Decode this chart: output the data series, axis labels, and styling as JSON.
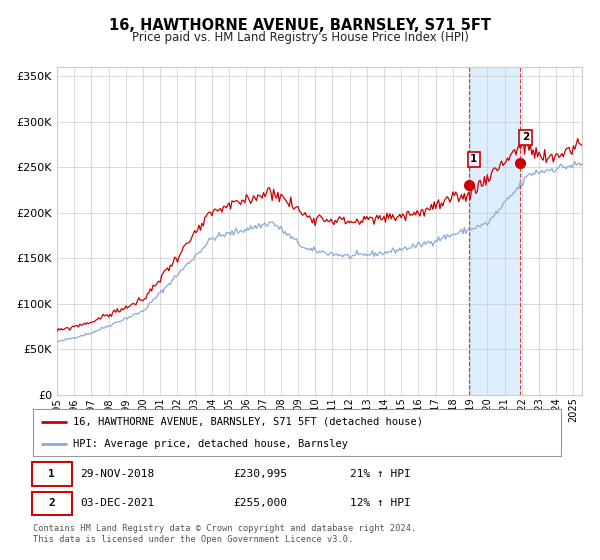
{
  "title": "16, HAWTHORNE AVENUE, BARNSLEY, S71 5FT",
  "subtitle": "Price paid vs. HM Land Registry's House Price Index (HPI)",
  "legend1": "16, HAWTHORNE AVENUE, BARNSLEY, S71 5FT (detached house)",
  "legend2": "HPI: Average price, detached house, Barnsley",
  "sale1_date": "29-NOV-2018",
  "sale1_price": 230995,
  "sale1_label": "21% ↑ HPI",
  "sale2_date": "03-DEC-2021",
  "sale2_price": 255000,
  "sale2_label": "12% ↑ HPI",
  "sale1_year": 2018.91,
  "sale2_year": 2021.92,
  "footer1": "Contains HM Land Registry data © Crown copyright and database right 2024.",
  "footer2": "This data is licensed under the Open Government Licence v3.0.",
  "red_color": "#cc0000",
  "blue_color": "#88aadd",
  "shade_color": "#ddeeff",
  "grid_color": "#cccccc",
  "bg_color": "#ffffff",
  "ylim_min": 0,
  "ylim_max": 360000,
  "xlim_min": 1995.0,
  "xlim_max": 2025.5
}
